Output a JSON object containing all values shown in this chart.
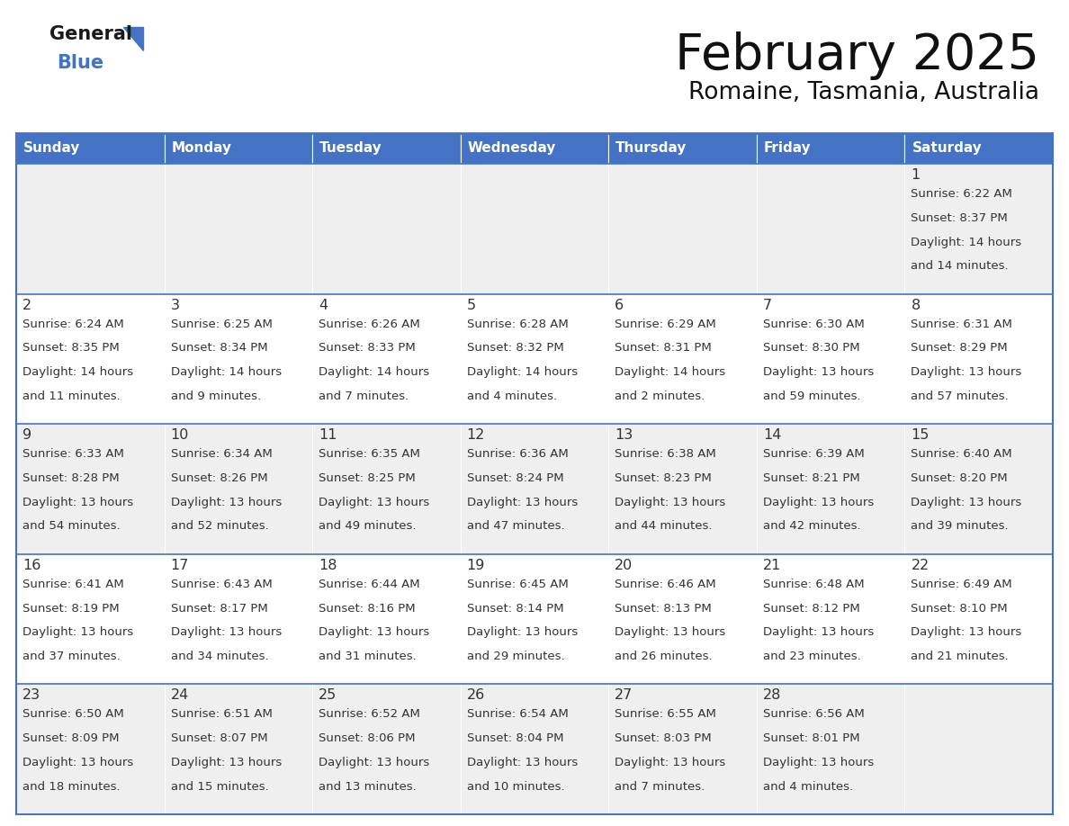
{
  "title": "February 2025",
  "subtitle": "Romaine, Tasmania, Australia",
  "header_color": "#4472C4",
  "header_text_color": "#FFFFFF",
  "day_names": [
    "Sunday",
    "Monday",
    "Tuesday",
    "Wednesday",
    "Thursday",
    "Friday",
    "Saturday"
  ],
  "row_colors": [
    "#EFEFEF",
    "#FFFFFF",
    "#EFEFEF",
    "#FFFFFF",
    "#EFEFEF"
  ],
  "border_color": "#4472C4",
  "text_color": "#333333",
  "number_color": "#333333",
  "days": [
    {
      "day": 1,
      "col": 6,
      "row": 0,
      "sunrise": "6:22 AM",
      "sunset": "8:37 PM",
      "daylight": "14 hours and 14 minutes."
    },
    {
      "day": 2,
      "col": 0,
      "row": 1,
      "sunrise": "6:24 AM",
      "sunset": "8:35 PM",
      "daylight": "14 hours and 11 minutes."
    },
    {
      "day": 3,
      "col": 1,
      "row": 1,
      "sunrise": "6:25 AM",
      "sunset": "8:34 PM",
      "daylight": "14 hours and 9 minutes."
    },
    {
      "day": 4,
      "col": 2,
      "row": 1,
      "sunrise": "6:26 AM",
      "sunset": "8:33 PM",
      "daylight": "14 hours and 7 minutes."
    },
    {
      "day": 5,
      "col": 3,
      "row": 1,
      "sunrise": "6:28 AM",
      "sunset": "8:32 PM",
      "daylight": "14 hours and 4 minutes."
    },
    {
      "day": 6,
      "col": 4,
      "row": 1,
      "sunrise": "6:29 AM",
      "sunset": "8:31 PM",
      "daylight": "14 hours and 2 minutes."
    },
    {
      "day": 7,
      "col": 5,
      "row": 1,
      "sunrise": "6:30 AM",
      "sunset": "8:30 PM",
      "daylight": "13 hours and 59 minutes."
    },
    {
      "day": 8,
      "col": 6,
      "row": 1,
      "sunrise": "6:31 AM",
      "sunset": "8:29 PM",
      "daylight": "13 hours and 57 minutes."
    },
    {
      "day": 9,
      "col": 0,
      "row": 2,
      "sunrise": "6:33 AM",
      "sunset": "8:28 PM",
      "daylight": "13 hours and 54 minutes."
    },
    {
      "day": 10,
      "col": 1,
      "row": 2,
      "sunrise": "6:34 AM",
      "sunset": "8:26 PM",
      "daylight": "13 hours and 52 minutes."
    },
    {
      "day": 11,
      "col": 2,
      "row": 2,
      "sunrise": "6:35 AM",
      "sunset": "8:25 PM",
      "daylight": "13 hours and 49 minutes."
    },
    {
      "day": 12,
      "col": 3,
      "row": 2,
      "sunrise": "6:36 AM",
      "sunset": "8:24 PM",
      "daylight": "13 hours and 47 minutes."
    },
    {
      "day": 13,
      "col": 4,
      "row": 2,
      "sunrise": "6:38 AM",
      "sunset": "8:23 PM",
      "daylight": "13 hours and 44 minutes."
    },
    {
      "day": 14,
      "col": 5,
      "row": 2,
      "sunrise": "6:39 AM",
      "sunset": "8:21 PM",
      "daylight": "13 hours and 42 minutes."
    },
    {
      "day": 15,
      "col": 6,
      "row": 2,
      "sunrise": "6:40 AM",
      "sunset": "8:20 PM",
      "daylight": "13 hours and 39 minutes."
    },
    {
      "day": 16,
      "col": 0,
      "row": 3,
      "sunrise": "6:41 AM",
      "sunset": "8:19 PM",
      "daylight": "13 hours and 37 minutes."
    },
    {
      "day": 17,
      "col": 1,
      "row": 3,
      "sunrise": "6:43 AM",
      "sunset": "8:17 PM",
      "daylight": "13 hours and 34 minutes."
    },
    {
      "day": 18,
      "col": 2,
      "row": 3,
      "sunrise": "6:44 AM",
      "sunset": "8:16 PM",
      "daylight": "13 hours and 31 minutes."
    },
    {
      "day": 19,
      "col": 3,
      "row": 3,
      "sunrise": "6:45 AM",
      "sunset": "8:14 PM",
      "daylight": "13 hours and 29 minutes."
    },
    {
      "day": 20,
      "col": 4,
      "row": 3,
      "sunrise": "6:46 AM",
      "sunset": "8:13 PM",
      "daylight": "13 hours and 26 minutes."
    },
    {
      "day": 21,
      "col": 5,
      "row": 3,
      "sunrise": "6:48 AM",
      "sunset": "8:12 PM",
      "daylight": "13 hours and 23 minutes."
    },
    {
      "day": 22,
      "col": 6,
      "row": 3,
      "sunrise": "6:49 AM",
      "sunset": "8:10 PM",
      "daylight": "13 hours and 21 minutes."
    },
    {
      "day": 23,
      "col": 0,
      "row": 4,
      "sunrise": "6:50 AM",
      "sunset": "8:09 PM",
      "daylight": "13 hours and 18 minutes."
    },
    {
      "day": 24,
      "col": 1,
      "row": 4,
      "sunrise": "6:51 AM",
      "sunset": "8:07 PM",
      "daylight": "13 hours and 15 minutes."
    },
    {
      "day": 25,
      "col": 2,
      "row": 4,
      "sunrise": "6:52 AM",
      "sunset": "8:06 PM",
      "daylight": "13 hours and 13 minutes."
    },
    {
      "day": 26,
      "col": 3,
      "row": 4,
      "sunrise": "6:54 AM",
      "sunset": "8:04 PM",
      "daylight": "13 hours and 10 minutes."
    },
    {
      "day": 27,
      "col": 4,
      "row": 4,
      "sunrise": "6:55 AM",
      "sunset": "8:03 PM",
      "daylight": "13 hours and 7 minutes."
    },
    {
      "day": 28,
      "col": 5,
      "row": 4,
      "sunrise": "6:56 AM",
      "sunset": "8:01 PM",
      "daylight": "13 hours and 4 minutes."
    }
  ],
  "logo_triangle_color": "#4472C4",
  "fig_width": 11.88,
  "fig_height": 9.18,
  "dpi": 100
}
